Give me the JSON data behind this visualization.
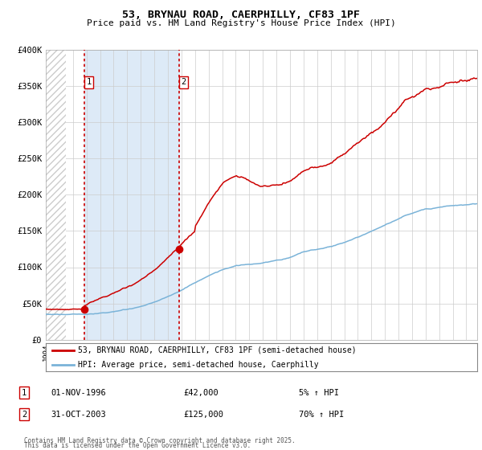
{
  "title": "53, BRYNAU ROAD, CAERPHILLY, CF83 1PF",
  "subtitle": "Price paid vs. HM Land Registry's House Price Index (HPI)",
  "legend_line1": "53, BRYNAU ROAD, CAERPHILLY, CF83 1PF (semi-detached house)",
  "legend_line2": "HPI: Average price, semi-detached house, Caerphilly",
  "footnote1": "Contains HM Land Registry data © Crown copyright and database right 2025.",
  "footnote2": "This data is licensed under the Open Government Licence v3.0.",
  "sale1_label": "1",
  "sale1_date": "01-NOV-1996",
  "sale1_price": 42000,
  "sale1_price_str": "£42,000",
  "sale1_hpi": "5% ↑ HPI",
  "sale2_label": "2",
  "sale2_date": "31-OCT-2003",
  "sale2_price": 125000,
  "sale2_price_str": "£125,000",
  "sale2_hpi": "70% ↑ HPI",
  "hpi_color": "#7ab3d8",
  "price_color": "#cc0000",
  "sale_marker_color": "#cc0000",
  "vline_color": "#cc0000",
  "shade_color": "#ddeaf7",
  "hatch_color": "#cccccc",
  "background_color": "#ffffff",
  "grid_color": "#cccccc",
  "ylim": [
    0,
    400000
  ],
  "xlim_start": 1994.0,
  "xlim_end": 2025.8,
  "sale1_x": 1996.833,
  "sale2_x": 2003.833,
  "hatch_end": 1995.5,
  "yticks": [
    0,
    50000,
    100000,
    150000,
    200000,
    250000,
    300000,
    350000,
    400000
  ],
  "ytick_labels": [
    "£0",
    "£50K",
    "£100K",
    "£150K",
    "£200K",
    "£250K",
    "£300K",
    "£350K",
    "£400K"
  ]
}
